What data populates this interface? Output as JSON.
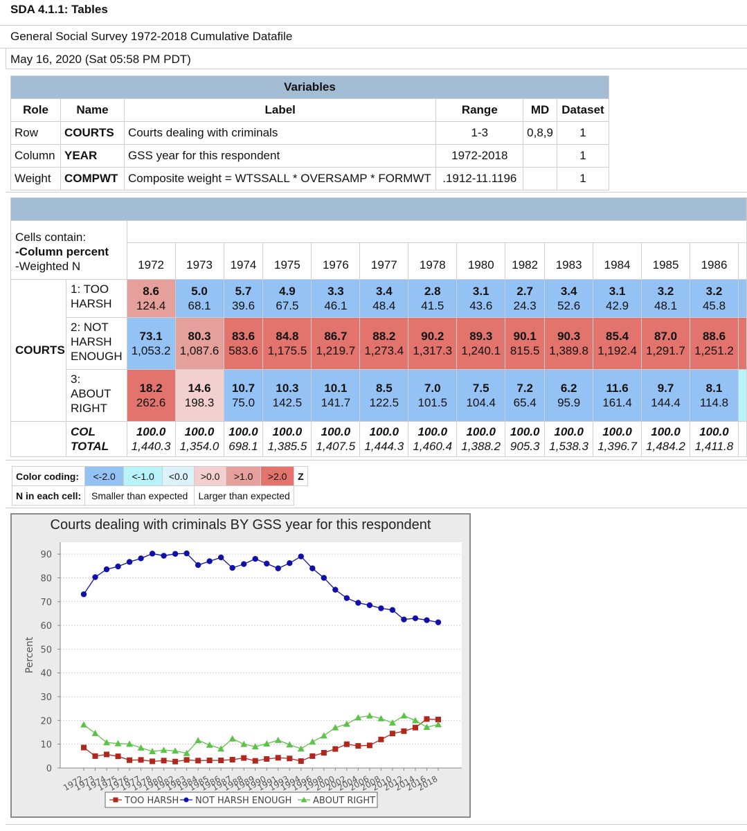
{
  "header": {
    "title": "SDA 4.1.1: Tables",
    "subtitle": "General Social Survey 1972-2018 Cumulative Datafile",
    "date": "May 16, 2020 (Sat 05:58 PM PDT)"
  },
  "variables": {
    "caption": "Variables",
    "headers": [
      "Role",
      "Name",
      "Label",
      "Range",
      "MD",
      "Dataset"
    ],
    "rows": [
      {
        "role": "Row",
        "name": "COURTS",
        "label": "Courts dealing with criminals",
        "range": "1-3",
        "md": "0,8,9",
        "dataset": "1"
      },
      {
        "role": "Column",
        "name": "YEAR",
        "label": "GSS year for this respondent",
        "range": "1972-2018",
        "md": "",
        "dataset": "1"
      },
      {
        "role": "Weight",
        "name": "COMPWT",
        "label": "Composite weight = WTSSALL * OVERSAMP * FORMWT",
        "range": ".1912-11.1196",
        "md": "",
        "dataset": "1"
      }
    ]
  },
  "crosstab": {
    "cells_contain": "Cells contain:",
    "col_percent": "-Column percent",
    "col_percent_bold": "Column percent",
    "weighted_n": "-Weighted N",
    "row_var": "COURTS",
    "years": [
      "1972",
      "1973",
      "1974",
      "1975",
      "1976",
      "1977",
      "1978",
      "1980",
      "1982",
      "1983",
      "1984",
      "1985",
      "1986"
    ],
    "rows": [
      {
        "label_lines": [
          "1: TOO",
          "HARSH"
        ],
        "pct": [
          "8.6",
          "5.0",
          "5.7",
          "4.9",
          "3.3",
          "3.4",
          "2.8",
          "3.1",
          "2.7",
          "3.4",
          "3.1",
          "3.2",
          "3.2"
        ],
        "n": [
          "124.4",
          "68.1",
          "39.6",
          "67.5",
          "46.1",
          "48.4",
          "41.5",
          "43.6",
          "24.3",
          "52.6",
          "42.9",
          "48.1",
          "45.8"
        ],
        "colors": [
          "pos1",
          "neg2",
          "neg2",
          "neg2",
          "neg2",
          "neg2",
          "neg2",
          "neg2",
          "neg2",
          "neg2",
          "neg2",
          "neg2",
          "neg2"
        ]
      },
      {
        "label_lines": [
          "2: NOT",
          "HARSH",
          "ENOUGH"
        ],
        "pct": [
          "73.1",
          "80.3",
          "83.6",
          "84.8",
          "86.7",
          "88.2",
          "90.2",
          "89.3",
          "90.1",
          "90.3",
          "85.4",
          "87.0",
          "88.6"
        ],
        "n": [
          "1,053.2",
          "1,087.6",
          "583.6",
          "1,175.5",
          "1,219.7",
          "1,273.4",
          "1,317.3",
          "1,240.1",
          "815.5",
          "1,389.8",
          "1,192.4",
          "1,291.7",
          "1,251.2"
        ],
        "colors": [
          "neg2",
          "pos1",
          "pos2",
          "pos2",
          "pos2",
          "pos2",
          "pos2",
          "pos2",
          "pos2",
          "pos2",
          "pos2",
          "pos2",
          "pos2"
        ]
      },
      {
        "label_lines": [
          "3:",
          "ABOUT",
          "RIGHT"
        ],
        "pct": [
          "18.2",
          "14.6",
          "10.7",
          "10.3",
          "10.1",
          "8.5",
          "7.0",
          "7.5",
          "7.2",
          "6.2",
          "11.6",
          "9.7",
          "8.1"
        ],
        "n": [
          "262.6",
          "198.3",
          "75.0",
          "142.5",
          "141.7",
          "122.5",
          "101.5",
          "104.4",
          "65.4",
          "95.9",
          "161.4",
          "144.4",
          "114.8"
        ],
        "colors": [
          "pos2",
          "pos0",
          "neg2",
          "neg2",
          "neg2",
          "neg2",
          "neg2",
          "neg2",
          "neg2",
          "neg2",
          "neg2",
          "neg2",
          "neg2"
        ]
      }
    ],
    "total_label_lines": [
      "COL",
      "TOTAL"
    ],
    "total_pct": [
      "100.0",
      "100.0",
      "100.0",
      "100.0",
      "100.0",
      "100.0",
      "100.0",
      "100.0",
      "100.0",
      "100.0",
      "100.0",
      "100.0",
      "100.0"
    ],
    "total_n": [
      "1,440.3",
      "1,354.0",
      "698.1",
      "1,385.5",
      "1,407.5",
      "1,444.3",
      "1,460.4",
      "1,388.2",
      "905.3",
      "1,538.3",
      "1,396.7",
      "1,484.2",
      "1,411.8"
    ]
  },
  "legend": {
    "color_coding_label": "Color coding:",
    "swatches": [
      {
        "text": "<-2.0",
        "color": "#94c2f5"
      },
      {
        "text": "<-1.0",
        "color": "#b8f3fa"
      },
      {
        "text": "<0.0",
        "color": "#dcf3fb"
      },
      {
        "text": ">0.0",
        "color": "#f3d0d0"
      },
      {
        "text": ">1.0",
        "color": "#e6a09c"
      },
      {
        "text": ">2.0",
        "color": "#e2736d"
      }
    ],
    "z_label": "Z",
    "n_label": "N in each cell:",
    "smaller": "Smaller than expected",
    "larger": "Larger than expected"
  },
  "chart_data": {
    "type": "line",
    "title": "Courts dealing with criminals BY GSS year for this respondent",
    "ylabel": "Percent",
    "xlabel": "",
    "ylim": [
      0,
      95
    ],
    "yticks": [
      0,
      10,
      20,
      30,
      40,
      50,
      60,
      70,
      80,
      90
    ],
    "x": [
      1972,
      1973,
      1974,
      1975,
      1976,
      1977,
      1978,
      1980,
      1982,
      1983,
      1984,
      1985,
      1986,
      1987,
      1988,
      1989,
      1990,
      1991,
      1993,
      1994,
      1996,
      1998,
      2000,
      2002,
      2004,
      2006,
      2008,
      2010,
      2012,
      2014,
      2016,
      2018
    ],
    "series": [
      {
        "name": "TOO HARSH",
        "color": "#b0271e",
        "marker": "square",
        "values": [
          8.6,
          5.0,
          5.7,
          4.9,
          3.3,
          3.4,
          2.8,
          3.1,
          2.7,
          3.4,
          3.1,
          3.2,
          3.2,
          3.5,
          4.2,
          3.0,
          3.8,
          4.3,
          4.0,
          2.9,
          5.0,
          6.4,
          8.0,
          10.0,
          9.3,
          9.5,
          12.0,
          14.5,
          15.5,
          17.0,
          20.6,
          20.4
        ]
      },
      {
        "name": "NOT HARSH ENOUGH",
        "color": "#1010a8",
        "marker": "circle",
        "values": [
          73.1,
          80.3,
          83.6,
          84.8,
          86.7,
          88.2,
          90.2,
          89.3,
          90.1,
          90.3,
          85.4,
          87.0,
          88.6,
          84.2,
          85.8,
          88.0,
          86.0,
          84.0,
          86.2,
          89.0,
          84.0,
          80.0,
          75.0,
          71.5,
          69.5,
          68.5,
          67.2,
          66.5,
          62.5,
          63.0,
          62.2,
          61.3
        ]
      },
      {
        "name": "ABOUT RIGHT",
        "color": "#5ec24a",
        "marker": "triangle",
        "values": [
          18.2,
          14.6,
          10.7,
          10.3,
          10.1,
          8.5,
          7.0,
          7.5,
          7.2,
          6.2,
          11.6,
          9.7,
          8.1,
          12.3,
          10.0,
          9.0,
          10.2,
          11.7,
          9.8,
          8.1,
          11.0,
          13.6,
          17.0,
          18.5,
          21.2,
          22.0,
          20.8,
          19.0,
          22.0,
          20.0,
          17.2,
          18.3
        ]
      }
    ],
    "grid": true,
    "legend_position": "bottom"
  }
}
